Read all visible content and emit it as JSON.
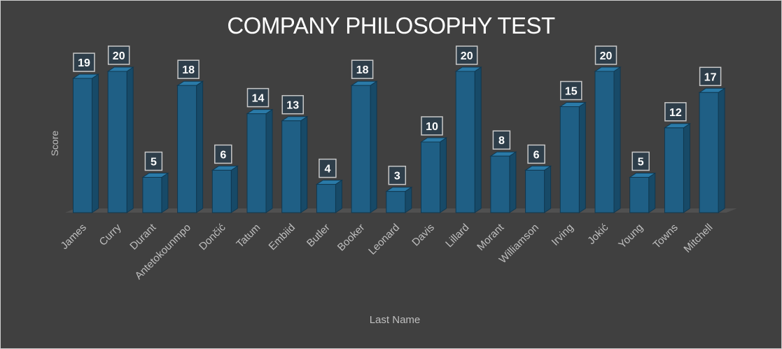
{
  "chart_data": {
    "type": "bar",
    "title": "COMPANY PHILOSOPHY TEST",
    "xlabel": "Last Name",
    "ylabel": "Score",
    "categories": [
      "James",
      "Curry",
      "Durant",
      "Antetokounmpo",
      "Dončić",
      "Tatum",
      "Embiid",
      "Butler",
      "Booker",
      "Leonard",
      "Davis",
      "Lillard",
      "Morant",
      "Williamson",
      "Irving",
      "Jokić",
      "Young",
      "Towns",
      "Mitchell"
    ],
    "values": [
      19,
      20,
      5,
      18,
      6,
      14,
      13,
      4,
      18,
      3,
      10,
      20,
      8,
      6,
      15,
      20,
      5,
      12,
      17
    ],
    "ylim": [
      0,
      20
    ],
    "grid": false,
    "legend": "none",
    "bar_color": "#1f5f85",
    "bar_side_color": "#174a68",
    "bar_top_color": "#2a7aa8",
    "label_box_color": "#2e3e4a"
  }
}
